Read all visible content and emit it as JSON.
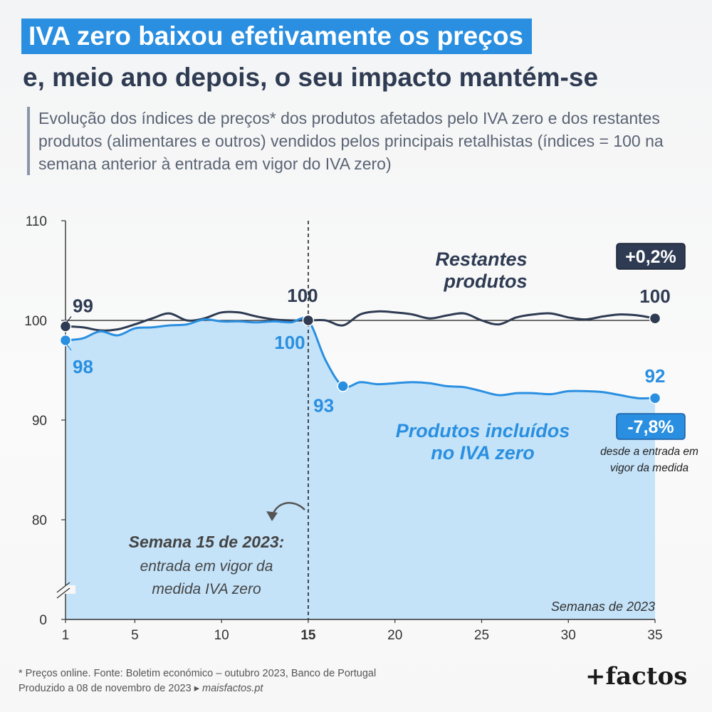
{
  "title": {
    "line1": "IVA zero baixou efetivamente os preços",
    "line2": "e, meio ano depois, o seu impacto mantém-se"
  },
  "subtitle": "Evolução dos índices de preços* dos produtos afetados pelo IVA zero e dos restantes produtos (alimentares e outros) vendidos pelos principais retalhistas (índices = 100 na semana anterior à entrada em vigor do IVA zero)",
  "chart_data": {
    "type": "line",
    "xlabel": "Semanas de 2023",
    "x_ticks": [
      "1",
      "5",
      "10",
      "15",
      "20",
      "25",
      "30",
      "35"
    ],
    "y_ticks": [
      "0",
      "80",
      "90",
      "100",
      "110"
    ],
    "ylim": [
      0,
      110
    ],
    "axis_break": true,
    "reference_line": 100,
    "x": [
      1,
      2,
      3,
      4,
      5,
      6,
      7,
      8,
      9,
      10,
      11,
      12,
      13,
      14,
      15,
      16,
      17,
      18,
      19,
      20,
      21,
      22,
      23,
      24,
      25,
      26,
      27,
      28,
      29,
      30,
      31,
      32,
      33,
      34,
      35
    ],
    "series": [
      {
        "name": "Restantes produtos",
        "color": "#2e3b52",
        "values": [
          99.4,
          99.3,
          99.0,
          99.1,
          99.6,
          100.2,
          100.7,
          100.0,
          100.2,
          100.8,
          100.8,
          100.4,
          100.1,
          100.0,
          100.0,
          100.0,
          99.5,
          100.6,
          100.9,
          100.8,
          100.6,
          100.2,
          100.5,
          100.7,
          100.0,
          99.6,
          100.3,
          100.6,
          100.7,
          100.3,
          100.1,
          100.4,
          100.6,
          100.5,
          100.2
        ],
        "labels": [
          {
            "x": 1,
            "text": "99"
          },
          {
            "x": 15,
            "text": "100"
          },
          {
            "x": 35,
            "text": "100"
          }
        ],
        "change_badge": "+0,2%"
      },
      {
        "name": "Produtos incluídos no IVA zero",
        "color": "#2a8fe0",
        "values": [
          98.0,
          98.2,
          98.9,
          98.5,
          99.2,
          99.3,
          99.5,
          99.6,
          100.1,
          99.9,
          99.9,
          99.8,
          99.9,
          99.8,
          100.0,
          96.0,
          93.4,
          93.8,
          93.6,
          93.7,
          93.8,
          93.7,
          93.4,
          93.3,
          92.9,
          92.5,
          92.7,
          92.7,
          92.6,
          92.9,
          92.9,
          92.8,
          92.5,
          92.2,
          92.2
        ],
        "labels": [
          {
            "x": 1,
            "text": "98"
          },
          {
            "x": 15,
            "text": "100"
          },
          {
            "x": 17,
            "text": "93"
          },
          {
            "x": 35,
            "text": "92"
          }
        ],
        "change_badge": "-7,8%",
        "badge_note": "desde a entrada em vigor da medida"
      }
    ],
    "annotations": {
      "event_week": 15,
      "event_title": "Semana 15 de 2023:",
      "event_text": "entrada em vigor da medida IVA zero",
      "series1_label_line1": "Restantes",
      "series1_label_line2": "produtos",
      "series2_label_line1": "Produtos incluídos",
      "series2_label_line2": "no IVA zero",
      "badge_note_line1": "desde a entrada em",
      "badge_note_line2": "vigor da medida"
    }
  },
  "footer": {
    "note": "* Preços online. Fonte: Boletim económico – outubro 2023, Banco de Portugal",
    "produced": "Produzido a 08 de novembro de 2023",
    "arrow": "▸",
    "site": "maisfactos.pt",
    "logo": "+factos"
  },
  "colors": {
    "accent": "#2a8fe0",
    "dark": "#2e3b52",
    "area": "#c4e3f9"
  }
}
